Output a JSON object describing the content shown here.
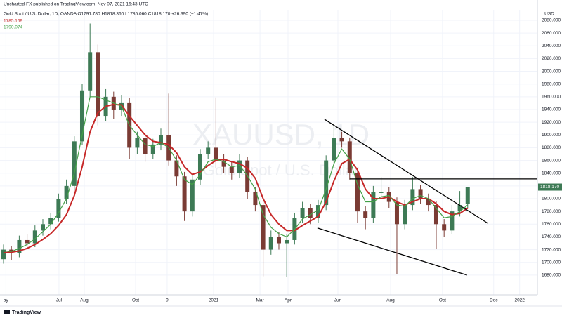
{
  "chart_data": {
    "type": "candlestick",
    "publisher": "Uncharted-FX published on TradingView.com, Nov 07, 2021 16:43 UTC",
    "title": "Gold Spot / U.S. Dollar, 1D, OANDA O1791.780 H1818.360 L1785.060 C1818.170 +26.390 (+1.47%)",
    "watermark": "XAUUSD, 1D",
    "watermark_subtitle": "Gold Spot / U.S. Dollar",
    "currency": "USD",
    "brand": "TradingView",
    "up_color": "#3d7a55",
    "down_color": "#7a3b34",
    "candles": [
      [
        1705,
        1728,
        1698,
        1720
      ],
      [
        1720,
        1726,
        1704,
        1715
      ],
      [
        1715,
        1742,
        1708,
        1735
      ],
      [
        1735,
        1744,
        1722,
        1730
      ],
      [
        1730,
        1758,
        1724,
        1750
      ],
      [
        1750,
        1768,
        1742,
        1760
      ],
      [
        1760,
        1778,
        1752,
        1770
      ],
      [
        1770,
        1808,
        1764,
        1800
      ],
      [
        1800,
        1830,
        1792,
        1820
      ],
      [
        1820,
        1898,
        1814,
        1890
      ],
      [
        1890,
        1980,
        1884,
        1970
      ],
      [
        1970,
        2075,
        1960,
        2030
      ],
      [
        2030,
        2042,
        1915,
        1930
      ],
      [
        1930,
        1972,
        1922,
        1960
      ],
      [
        1960,
        1968,
        1925,
        1940
      ],
      [
        1940,
        1962,
        1930,
        1950
      ],
      [
        1950,
        1958,
        1862,
        1880
      ],
      [
        1880,
        1905,
        1870,
        1895
      ],
      [
        1895,
        1902,
        1858,
        1870
      ],
      [
        1870,
        1894,
        1862,
        1885
      ],
      [
        1885,
        1910,
        1876,
        1900
      ],
      [
        1900,
        1965,
        1852,
        1860
      ],
      [
        1860,
        1868,
        1820,
        1835
      ],
      [
        1835,
        1842,
        1765,
        1780
      ],
      [
        1780,
        1838,
        1772,
        1830
      ],
      [
        1830,
        1878,
        1822,
        1870
      ],
      [
        1870,
        1890,
        1862,
        1880
      ],
      [
        1880,
        1959,
        1848,
        1860
      ],
      [
        1860,
        1870,
        1840,
        1850
      ],
      [
        1850,
        1858,
        1830,
        1840
      ],
      [
        1840,
        1870,
        1832,
        1860
      ],
      [
        1860,
        1866,
        1800,
        1810
      ],
      [
        1810,
        1818,
        1780,
        1790
      ],
      [
        1790,
        1796,
        1678,
        1720
      ],
      [
        1720,
        1750,
        1712,
        1740
      ],
      [
        1740,
        1748,
        1720,
        1730
      ],
      [
        1730,
        1745,
        1677,
        1735
      ],
      [
        1735,
        1778,
        1728,
        1770
      ],
      [
        1770,
        1795,
        1762,
        1785
      ],
      [
        1785,
        1792,
        1760,
        1770
      ],
      [
        1770,
        1798,
        1762,
        1790
      ],
      [
        1790,
        1868,
        1782,
        1860
      ],
      [
        1860,
        1916,
        1852,
        1895
      ],
      [
        1895,
        1905,
        1880,
        1890
      ],
      [
        1890,
        1896,
        1830,
        1840
      ],
      [
        1840,
        1848,
        1762,
        1780
      ],
      [
        1780,
        1788,
        1752,
        1770
      ],
      [
        1770,
        1820,
        1762,
        1810
      ],
      [
        1810,
        1834,
        1800,
        1810
      ],
      [
        1810,
        1818,
        1785,
        1795
      ],
      [
        1795,
        1802,
        1682,
        1760
      ],
      [
        1760,
        1798,
        1752,
        1790
      ],
      [
        1790,
        1834,
        1782,
        1815
      ],
      [
        1815,
        1822,
        1792,
        1800
      ],
      [
        1800,
        1808,
        1780,
        1790
      ],
      [
        1790,
        1796,
        1721,
        1760
      ],
      [
        1760,
        1768,
        1740,
        1750
      ],
      [
        1750,
        1790,
        1744,
        1780
      ],
      [
        1780,
        1812,
        1772,
        1790
      ],
      [
        1791.78,
        1818.36,
        1785.06,
        1818.17
      ]
    ],
    "series": [
      {
        "color": "#c62828",
        "label": "1785.169",
        "values": [
          1715,
          1716,
          1718,
          1722,
          1728,
          1736,
          1745,
          1758,
          1775,
          1805,
          1850,
          1905,
          1935,
          1945,
          1948,
          1947,
          1930,
          1915,
          1900,
          1890,
          1888,
          1885,
          1872,
          1850,
          1838,
          1842,
          1852,
          1860,
          1862,
          1858,
          1855,
          1848,
          1832,
          1800,
          1775,
          1760,
          1750,
          1750,
          1758,
          1765,
          1772,
          1795,
          1828,
          1855,
          1862,
          1845,
          1815,
          1800,
          1800,
          1803,
          1795,
          1790,
          1795,
          1800,
          1800,
          1792,
          1780,
          1775,
          1777,
          1785.169
        ]
      },
      {
        "color": "#43a047",
        "label": "1790.074",
        "values": [
          1718,
          1717,
          1722,
          1728,
          1737,
          1748,
          1760,
          1778,
          1800,
          1840,
          1900,
          1960,
          1960,
          1955,
          1950,
          1945,
          1915,
          1900,
          1885,
          1882,
          1888,
          1880,
          1860,
          1830,
          1822,
          1838,
          1858,
          1862,
          1858,
          1850,
          1852,
          1836,
          1815,
          1775,
          1755,
          1745,
          1740,
          1752,
          1768,
          1775,
          1782,
          1815,
          1855,
          1878,
          1862,
          1822,
          1795,
          1795,
          1803,
          1805,
          1790,
          1788,
          1800,
          1805,
          1800,
          1785,
          1770,
          1772,
          1780,
          1790.074
        ]
      }
    ],
    "trendlines": [
      [
        [
          40.8,
          1924.6
        ],
        [
          61.6,
          1761
        ]
      ],
      [
        [
          39.9,
          1754
        ],
        [
          58.9,
          1680
        ]
      ],
      [
        [
          44,
          1831
        ],
        [
          67.9,
          1831
        ]
      ]
    ],
    "last_price": {
      "value": 1818.17,
      "label": "1818.170"
    },
    "xlim": [
      -0.446,
      67.86
    ],
    "xticks": [
      {
        "value": 0.3,
        "label": "ay"
      },
      {
        "value": 7.05,
        "label": "Jul"
      },
      {
        "value": 10.27,
        "label": "Aug"
      },
      {
        "value": 16.79,
        "label": "Oct"
      },
      {
        "value": 20.8,
        "label": "9"
      },
      {
        "value": 26.7,
        "label": "2021"
      },
      {
        "value": 32.6,
        "label": "Mar"
      },
      {
        "value": 36.16,
        "label": "Apr"
      },
      {
        "value": 42.5,
        "label": "Jun"
      },
      {
        "value": 49.2,
        "label": "Aug"
      },
      {
        "value": 55.8,
        "label": "Oct"
      },
      {
        "value": 62.3,
        "label": "Dec"
      },
      {
        "value": 65.6,
        "label": "2022"
      }
    ],
    "ylim": [
      1649,
      2096.5
    ],
    "yticks": [
      {
        "value": 1680,
        "label": "1680.000"
      },
      {
        "value": 1700,
        "label": "1700.000"
      },
      {
        "value": 1720,
        "label": "1720.000"
      },
      {
        "value": 1740,
        "label": "1740.000"
      },
      {
        "value": 1760,
        "label": "1760.000"
      },
      {
        "value": 1780,
        "label": "1780.000"
      },
      {
        "value": 1800,
        "label": "1800.000"
      },
      {
        "value": 1820,
        "label": "1820.000"
      },
      {
        "value": 1840,
        "label": "1840.000"
      },
      {
        "value": 1860,
        "label": "1860.000"
      },
      {
        "value": 1880,
        "label": "1880.000"
      },
      {
        "value": 1900,
        "label": "1900.000"
      },
      {
        "value": 1920,
        "label": "1920.000"
      },
      {
        "value": 1940,
        "label": "1940.000"
      },
      {
        "value": 1960,
        "label": "1960.000"
      },
      {
        "value": 1980,
        "label": "1980.000"
      },
      {
        "value": 2000,
        "label": "2000.000"
      },
      {
        "value": 2020,
        "label": "2020.000"
      },
      {
        "value": 2040,
        "label": "2040.000"
      },
      {
        "value": 2060,
        "label": "2060.000"
      },
      {
        "value": 2080,
        "label": "2080.000"
      }
    ],
    "grid": true
  }
}
